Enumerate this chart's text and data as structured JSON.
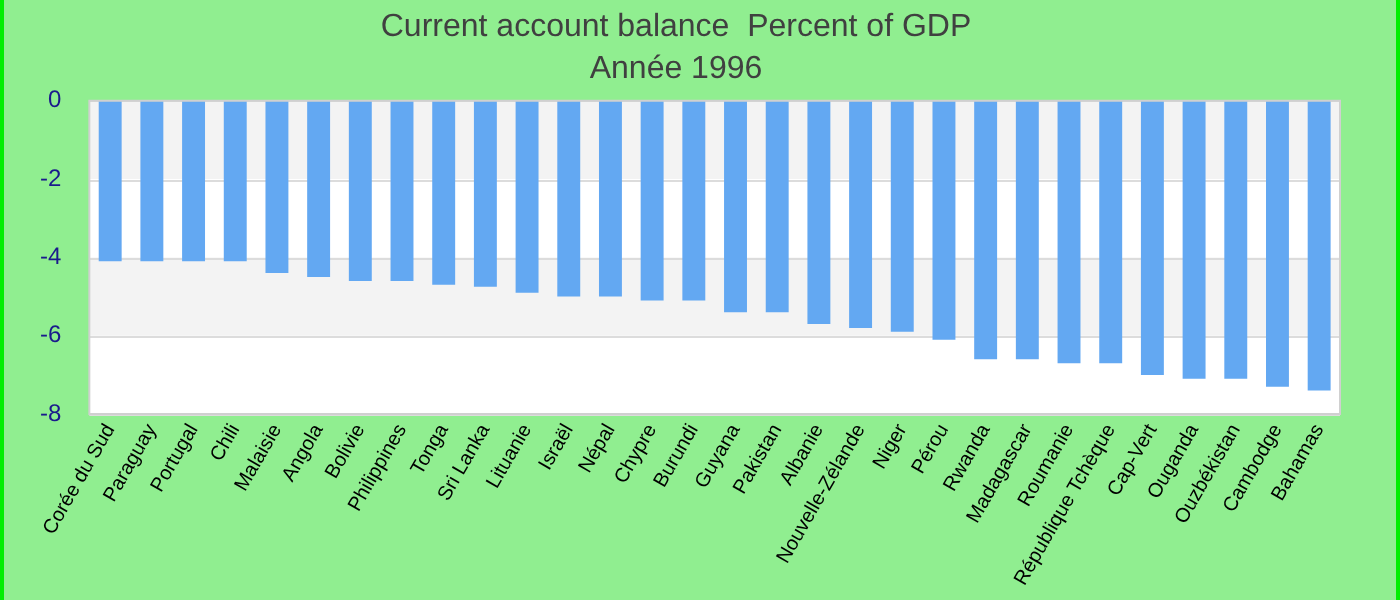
{
  "chart_data": {
    "type": "bar",
    "title": "Current account balance  Percent of GDP",
    "subtitle": "Année 1996",
    "categories": [
      "Corée du Sud",
      "Paraguay",
      "Portugal",
      "Chili",
      "Malaisie",
      "Angola",
      "Bolivie",
      "Philippines",
      "Tonga",
      "Sri Lanka",
      "Lituanie",
      "Israël",
      "Népal",
      "Chypre",
      "Burundi",
      "Guyana",
      "Pakistan",
      "Albanie",
      "Nouvelle-Zélande",
      "Niger",
      "Pérou",
      "Rwanda",
      "Madagascar",
      "Roumanie",
      "République Tchèque",
      "Cap-Vert",
      "Ouganda",
      "Ouzbékistan",
      "Cambodge",
      "Bahamas"
    ],
    "values": [
      -4.1,
      -4.1,
      -4.1,
      -4.1,
      -4.4,
      -4.5,
      -4.6,
      -4.6,
      -4.7,
      -4.75,
      -4.9,
      -5.0,
      -5.0,
      -5.1,
      -5.1,
      -5.4,
      -5.4,
      -5.7,
      -5.8,
      -5.9,
      -6.1,
      -6.6,
      -6.6,
      -6.7,
      -6.7,
      -7.0,
      -7.1,
      -7.1,
      -7.3,
      -7.4
    ],
    "color": "#63a8f2",
    "ylim": [
      -8,
      0
    ],
    "yticks": [
      0,
      -2,
      -4,
      -6,
      -8
    ],
    "grid": "y"
  }
}
